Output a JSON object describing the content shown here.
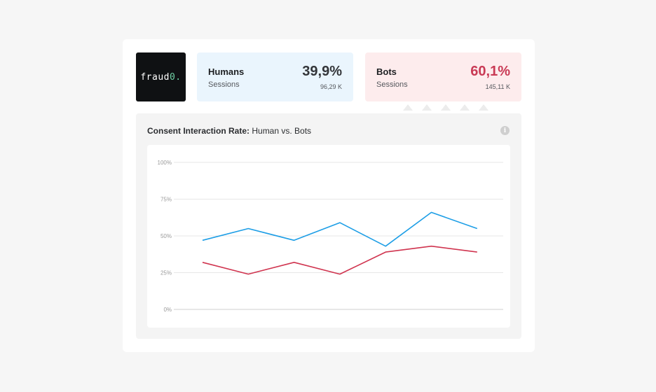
{
  "logo": {
    "text": "fraud",
    "accent": "0.",
    "bg_color": "#0f1113",
    "accent_color": "#6fd1a4"
  },
  "stats": {
    "humans": {
      "label": "Humans",
      "sub": "Sessions",
      "percent": "39,9%",
      "count": "96,29 K",
      "bg_color": "#eaf5fd"
    },
    "bots": {
      "label": "Bots",
      "sub": "Sessions",
      "percent": "60,1%",
      "count": "145,11 K",
      "bg_color": "#fdeced",
      "color": "#c93a55"
    }
  },
  "panel": {
    "title_bold": "Consent Interaction Rate:",
    "title_rest": " Human vs. Bots",
    "info_icon": "info-icon"
  },
  "chart_data": {
    "type": "line",
    "title": "Consent Interaction Rate: Human vs. Bots",
    "y_ticks": [
      "100%",
      "75%",
      "50%",
      "25%",
      "0%"
    ],
    "ylim": [
      0,
      100
    ],
    "grid": true,
    "legend": "none",
    "x": [
      1,
      2,
      3,
      4,
      5,
      6,
      7
    ],
    "series": [
      {
        "id": "humans",
        "color": "#1d9ee6",
        "values": [
          47,
          55,
          47,
          59,
          43,
          66,
          55
        ]
      },
      {
        "id": "bots",
        "color": "#d0344f",
        "values": [
          32,
          24,
          32,
          24,
          39,
          43,
          39
        ]
      }
    ]
  }
}
